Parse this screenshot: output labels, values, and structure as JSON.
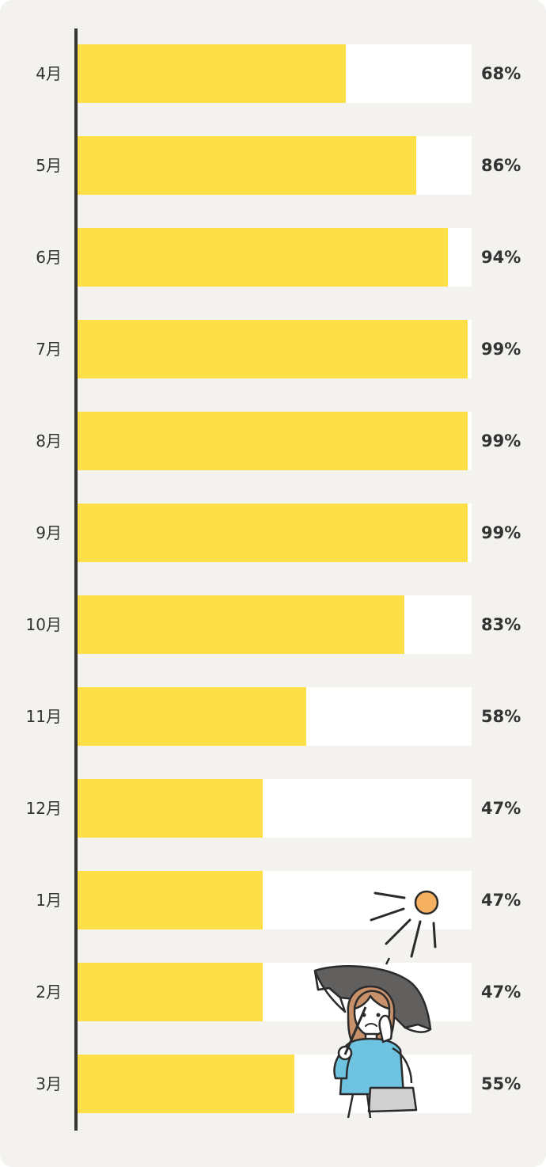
{
  "chart_data": {
    "type": "bar",
    "orientation": "horizontal",
    "categories": [
      "4月",
      "5月",
      "6月",
      "7月",
      "8月",
      "9月",
      "10月",
      "11月",
      "12月",
      "1月",
      "2月",
      "3月"
    ],
    "values": [
      68,
      86,
      94,
      99,
      99,
      99,
      83,
      58,
      47,
      47,
      47,
      55
    ],
    "value_labels": [
      "68%",
      "86%",
      "94%",
      "99%",
      "99%",
      "99%",
      "83%",
      "58%",
      "47%",
      "47%",
      "47%",
      "55%"
    ],
    "xlim": [
      0,
      100
    ],
    "title": "",
    "xlabel": "",
    "ylabel": "",
    "grid": false,
    "legend": "none"
  },
  "colors": {
    "bar_fill": "#fde047",
    "bar_track": "#ffffff",
    "background": "#f3f2ef",
    "axis": "#333333",
    "text": "#333333",
    "sun": "#f5b060",
    "umbrella": "#625f5f",
    "shirt": "#6ec3e0",
    "bag": "#d0d0d0",
    "hair": "#c9916a"
  },
  "illustration": {
    "icon": "woman-with-parasol-under-sun-icon"
  }
}
